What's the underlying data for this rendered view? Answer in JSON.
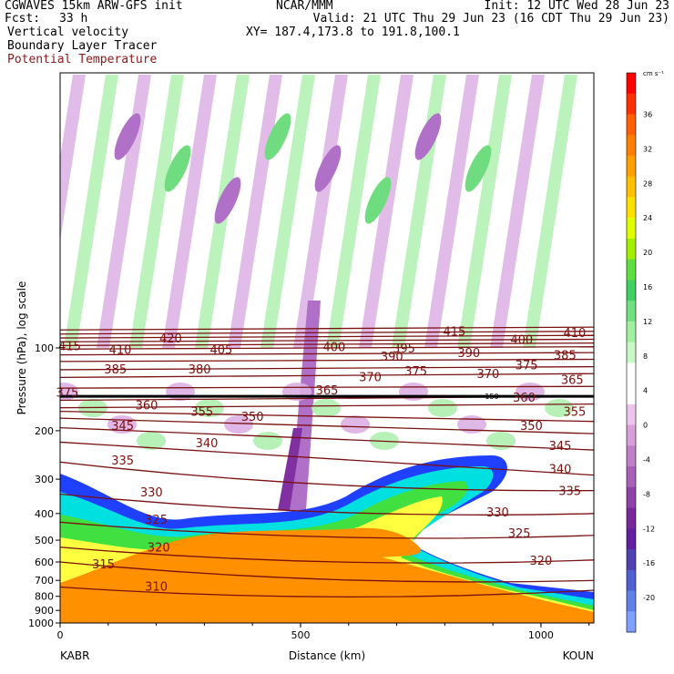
{
  "header": {
    "model_title": "CGWAVES 15km ARW-GFS init",
    "forecast_label": "Fcst:",
    "forecast_value": "33 h",
    "center": "NCAR/MMM",
    "init_text": "Init: 12 UTC Wed 28 Jun 23",
    "valid_text": "Valid: 21 UTC Thu 29 Jun 23 (16 CDT Thu 29 Jun 23)",
    "xy_text": "XY= 187.4,173.8 to 191.8,100.1",
    "field_1": "Vertical velocity",
    "field_2": "Boundary Layer Tracer",
    "field_3": "Potential Temperature"
  },
  "colors": {
    "theta_line": "#7a1010",
    "border": "#000000"
  },
  "chart_data": {
    "type": "heatmap",
    "x_axis": {
      "label": "Distance (km)",
      "range": [
        0,
        1110
      ],
      "ticks": [
        0,
        500,
        1000
      ],
      "tick_labels": [
        "0",
        "500",
        "1000"
      ],
      "left_station": "KABR",
      "right_station": "KOUN"
    },
    "y_axis": {
      "label": "Pressure (hPa), log scale",
      "scale": "log",
      "range": [
        1000,
        10
      ],
      "ticks": [
        100,
        200,
        300,
        400,
        500,
        600,
        700,
        800,
        900,
        1000
      ],
      "tick_labels": [
        "100",
        "200",
        "300",
        "400",
        "500",
        "600",
        "700",
        "800",
        "900",
        "1000"
      ]
    },
    "colorbar": {
      "unit": "cm s⁻¹",
      "labels": [
        "36",
        "32",
        "28",
        "24",
        "20",
        "16",
        "12",
        "8",
        "4",
        "0",
        "-4",
        "-8",
        "-12",
        "-16",
        "-20"
      ],
      "colors": [
        "#ff0000",
        "#ff3000",
        "#ff6000",
        "#ff8000",
        "#ffa000",
        "#ffc000",
        "#ffe000",
        "#e0ff00",
        "#a0f000",
        "#60e040",
        "#40d060",
        "#70e080",
        "#a0f0a0",
        "#c8f8c8",
        "#ffffff",
        "#ffffff",
        "#ecc4ec",
        "#d8a0d8",
        "#c080c8",
        "#a860b8",
        "#9040a8",
        "#782898",
        "#6020a0",
        "#5040b0",
        "#5060d0",
        "#6080e8",
        "#80a0ff"
      ]
    },
    "theta_contours": [
      {
        "label": "310",
        "p_left": 740,
        "p_right": 760
      },
      {
        "label": "315",
        "p_left": 600,
        "p_right": 700
      },
      {
        "label": "320",
        "p_left": 530,
        "p_right": 590
      },
      {
        "label": "325",
        "p_left": 430,
        "p_right": 480
      },
      {
        "label": "330",
        "p_left": 340,
        "p_right": 400
      },
      {
        "label": "335",
        "p_left": 260,
        "p_right": 330
      },
      {
        "label": "340",
        "p_left": 220,
        "p_right": 290
      },
      {
        "label": "345",
        "p_left": 195,
        "p_right": 235
      },
      {
        "label": "350",
        "p_left": 180,
        "p_right": 205
      },
      {
        "label": "355",
        "p_left": 170,
        "p_right": 185
      },
      {
        "label": "360",
        "p_left": 165,
        "p_right": 160
      },
      {
        "label": "365",
        "p_left": 155,
        "p_right": 150
      },
      {
        "label": "370",
        "p_left": 140,
        "p_right": 138
      },
      {
        "label": "375",
        "p_left": 128,
        "p_right": 124
      },
      {
        "label": "380",
        "p_left": 120,
        "p_right": 117
      },
      {
        "label": "385",
        "p_left": 112,
        "p_right": 110
      },
      {
        "label": "390",
        "p_left": 106,
        "p_right": 104
      },
      {
        "label": "395",
        "p_left": 101,
        "p_right": 99
      },
      {
        "label": "400",
        "p_left": 98,
        "p_right": 96
      },
      {
        "label": "405",
        "p_left": 95,
        "p_right": 93
      },
      {
        "label": "410",
        "p_left": 92,
        "p_right": 90
      },
      {
        "label": "415",
        "p_left": 89,
        "p_right": 87
      },
      {
        "label": "420",
        "p_left": 86,
        "p_right": 84
      }
    ],
    "theta_labels": [
      {
        "text": "415",
        "x": 20,
        "p": 98
      },
      {
        "text": "410",
        "x": 125,
        "p": 101
      },
      {
        "text": "420",
        "x": 230,
        "p": 92
      },
      {
        "text": "405",
        "x": 335,
        "p": 101
      },
      {
        "text": "400",
        "x": 570,
        "p": 99
      },
      {
        "text": "395",
        "x": 715,
        "p": 100
      },
      {
        "text": "415",
        "x": 820,
        "p": 87
      },
      {
        "text": "400",
        "x": 960,
        "p": 93
      },
      {
        "text": "410",
        "x": 1070,
        "p": 88
      },
      {
        "text": "390",
        "x": 690,
        "p": 107
      },
      {
        "text": "390",
        "x": 850,
        "p": 104
      },
      {
        "text": "385",
        "x": 1050,
        "p": 106
      },
      {
        "text": "385",
        "x": 115,
        "p": 119
      },
      {
        "text": "380",
        "x": 290,
        "p": 119
      },
      {
        "text": "375",
        "x": 740,
        "p": 121
      },
      {
        "text": "375",
        "x": 970,
        "p": 115
      },
      {
        "text": "370",
        "x": 645,
        "p": 127
      },
      {
        "text": "370",
        "x": 890,
        "p": 124
      },
      {
        "text": "365",
        "x": 1065,
        "p": 130
      },
      {
        "text": "375",
        "x": 15,
        "p": 145
      },
      {
        "text": "365",
        "x": 555,
        "p": 142
      },
      {
        "text": "360",
        "x": 180,
        "p": 161
      },
      {
        "text": "360",
        "x": 965,
        "p": 151
      },
      {
        "text": "355",
        "x": 295,
        "p": 170
      },
      {
        "text": "355",
        "x": 1070,
        "p": 170
      },
      {
        "text": "350",
        "x": 400,
        "p": 177
      },
      {
        "text": "350",
        "x": 980,
        "p": 191
      },
      {
        "text": "345",
        "x": 130,
        "p": 191
      },
      {
        "text": "345",
        "x": 1040,
        "p": 226
      },
      {
        "text": "340",
        "x": 305,
        "p": 221
      },
      {
        "text": "340",
        "x": 1040,
        "p": 275
      },
      {
        "text": "335",
        "x": 130,
        "p": 255
      },
      {
        "text": "335",
        "x": 1060,
        "p": 330
      },
      {
        "text": "330",
        "x": 190,
        "p": 333
      },
      {
        "text": "330",
        "x": 910,
        "p": 394
      },
      {
        "text": "325",
        "x": 200,
        "p": 420
      },
      {
        "text": "325",
        "x": 955,
        "p": 470
      },
      {
        "text": "320",
        "x": 205,
        "p": 530
      },
      {
        "text": "320",
        "x": 1000,
        "p": 590
      },
      {
        "text": "315",
        "x": 90,
        "p": 610
      },
      {
        "text": "310",
        "x": 200,
        "p": 735
      }
    ],
    "tropopause_label": "150",
    "terrain_note": ""
  }
}
